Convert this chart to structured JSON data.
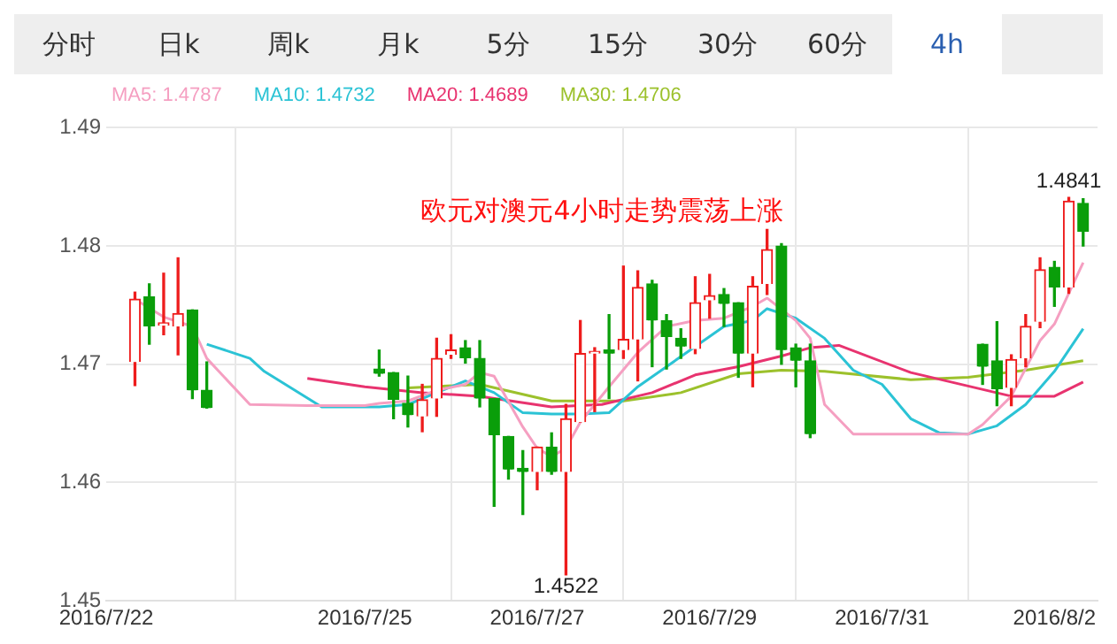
{
  "chart_data": {
    "type": "candlestick",
    "title": "欧元对澳元4小时走势震荡上涨",
    "annotations": [
      "分时",
      "日k",
      "周k",
      "月k",
      "5分",
      "15分",
      "30分",
      "60分",
      "4h",
      {
        "text": "1.4841",
        "y": 1.4841
      },
      {
        "text": "1.4522",
        "y": 1.4522
      }
    ],
    "x": [
      "2016-07-22T08:00",
      "2016-07-22T12:00",
      "2016-07-22T16:00",
      "2016-07-22T20:00",
      "2016-07-23T00:00",
      "2016-07-23T04:00",
      "2016-07-25T04:00",
      "2016-07-25T08:00",
      "2016-07-25T12:00",
      "2016-07-25T16:00",
      "2016-07-25T20:00",
      "2016-07-26T00:00",
      "2016-07-26T04:00",
      "2016-07-26T08:00",
      "2016-07-26T12:00",
      "2016-07-26T16:00",
      "2016-07-26T20:00",
      "2016-07-27T00:00",
      "2016-07-27T04:00",
      "2016-07-27T08:00",
      "2016-07-27T12:00",
      "2016-07-27T16:00",
      "2016-07-27T20:00",
      "2016-07-28T00:00",
      "2016-07-28T04:00",
      "2016-07-28T08:00",
      "2016-07-28T12:00",
      "2016-07-28T16:00",
      "2016-07-28T20:00",
      "2016-07-29T00:00",
      "2016-07-29T04:00",
      "2016-07-29T08:00",
      "2016-07-29T12:00",
      "2016-07-29T16:00",
      "2016-07-29T20:00",
      "2016-07-30T00:00",
      "2016-07-30T04:00",
      "2016-08-01T04:00",
      "2016-08-01T08:00",
      "2016-08-01T12:00",
      "2016-08-01T16:00",
      "2016-08-01T20:00",
      "2016-08-02T00:00",
      "2016-08-02T04:00",
      "2016-08-02T08:00"
    ],
    "ohlc": [
      [
        1.4702,
        1.4761,
        1.4682,
        1.4755
      ],
      [
        1.4757,
        1.4768,
        1.4717,
        1.4732
      ],
      [
        1.4733,
        1.4777,
        1.4725,
        1.4735
      ],
      [
        1.4732,
        1.479,
        1.4708,
        1.4743
      ],
      [
        1.4746,
        1.4746,
        1.4671,
        1.4678
      ],
      [
        1.4678,
        1.4702,
        1.4663,
        1.4663
      ],
      [
        1.4696,
        1.4712,
        1.469,
        1.4692
      ],
      [
        1.4693,
        1.4693,
        1.4654,
        1.467
      ],
      [
        1.4667,
        1.469,
        1.4647,
        1.4657
      ],
      [
        1.4656,
        1.4683,
        1.4643,
        1.467
      ],
      [
        1.4671,
        1.4722,
        1.4656,
        1.4705
      ],
      [
        1.4708,
        1.4725,
        1.4705,
        1.4712
      ],
      [
        1.4714,
        1.472,
        1.4701,
        1.4705
      ],
      [
        1.4705,
        1.472,
        1.4664,
        1.4671
      ],
      [
        1.4671,
        1.4671,
        1.458,
        1.464
      ],
      [
        1.4639,
        1.4639,
        1.4603,
        1.4611
      ],
      [
        1.4612,
        1.4627,
        1.4573,
        1.4609
      ],
      [
        1.4609,
        1.463,
        1.4594,
        1.463
      ],
      [
        1.463,
        1.4642,
        1.4607,
        1.4609
      ],
      [
        1.4609,
        1.4666,
        1.4522,
        1.4654
      ],
      [
        1.4651,
        1.4737,
        1.4651,
        1.4709
      ],
      [
        1.4709,
        1.4714,
        1.466,
        1.4711
      ],
      [
        1.4712,
        1.4742,
        1.4671,
        1.4709
      ],
      [
        1.4712,
        1.4783,
        1.4705,
        1.4721
      ],
      [
        1.4721,
        1.4779,
        1.4686,
        1.4765
      ],
      [
        1.4768,
        1.4771,
        1.4698,
        1.4737
      ],
      [
        1.4737,
        1.4742,
        1.4696,
        1.4723
      ],
      [
        1.4722,
        1.473,
        1.4705,
        1.4715
      ],
      [
        1.4713,
        1.4774,
        1.4709,
        1.4752
      ],
      [
        1.4754,
        1.4776,
        1.4739,
        1.4758
      ],
      [
        1.4759,
        1.4764,
        1.4732,
        1.4751
      ],
      [
        1.4752,
        1.4752,
        1.4689,
        1.4709
      ],
      [
        1.4709,
        1.4774,
        1.4681,
        1.4766
      ],
      [
        1.4768,
        1.4814,
        1.4759,
        1.4797
      ],
      [
        1.48,
        1.4802,
        1.47,
        1.4712
      ],
      [
        1.4714,
        1.4717,
        1.4681,
        1.4703
      ],
      [
        1.4703,
        1.4717,
        1.4638,
        1.4641
      ],
      [
        1.4717,
        1.4717,
        1.4683,
        1.4698
      ],
      [
        1.4703,
        1.4736,
        1.4665,
        1.4679
      ],
      [
        1.468,
        1.4708,
        1.4665,
        1.4704
      ],
      [
        1.4705,
        1.4742,
        1.4698,
        1.4732
      ],
      [
        1.4736,
        1.479,
        1.4731,
        1.478
      ],
      [
        1.4782,
        1.4787,
        1.4749,
        1.4765
      ],
      [
        1.4765,
        1.4841,
        1.476,
        1.4838
      ],
      [
        1.4836,
        1.484,
        1.48,
        1.4812
      ]
    ],
    "series": [
      {
        "name": "MA5: 1.4787",
        "type": "line",
        "color": "#f59fc1",
        "x": [
          "2016-07-22T08:00",
          "2016-07-22T16:00",
          "2016-07-23T00:00",
          "2016-07-23T04:00",
          "2016-07-23T16:00",
          "2016-07-24T08:00",
          "2016-07-25T00:00",
          "2016-07-25T04:00",
          "2016-07-25T12:00",
          "2016-07-25T20:00",
          "2016-07-26T04:00",
          "2016-07-26T08:00",
          "2016-07-26T12:00",
          "2016-07-26T20:00",
          "2016-07-27T00:00",
          "2016-07-27T04:00",
          "2016-07-27T08:00",
          "2016-07-27T12:00",
          "2016-07-27T20:00",
          "2016-07-28T04:00",
          "2016-07-28T12:00",
          "2016-07-28T20:00",
          "2016-07-29T04:00",
          "2016-07-29T12:00",
          "2016-07-29T16:00",
          "2016-07-30T00:00",
          "2016-07-30T04:00",
          "2016-07-30T08:00",
          "2016-07-30T16:00",
          "2016-07-31T16:00",
          "2016-08-01T00:00",
          "2016-08-01T04:00",
          "2016-08-01T12:00",
          "2016-08-01T20:00",
          "2016-08-02T00:00",
          "2016-08-02T08:00"
        ],
        "values": [
          1.4755,
          1.474,
          1.4732,
          1.4705,
          1.4666,
          1.4665,
          1.4665,
          1.4667,
          1.4669,
          1.4678,
          1.4683,
          1.4693,
          1.469,
          1.4647,
          1.4629,
          1.4622,
          1.4629,
          1.4651,
          1.4681,
          1.471,
          1.4732,
          1.4737,
          1.4739,
          1.4749,
          1.4756,
          1.4737,
          1.4722,
          1.4666,
          1.4641,
          1.4641,
          1.4641,
          1.4649,
          1.4673,
          1.472,
          1.4734,
          1.4786
        ]
      },
      {
        "name": "MA10: 1.4732",
        "type": "line",
        "color": "#2bc3d5",
        "x": [
          "2016-07-23T04:00",
          "2016-07-23T16:00",
          "2016-07-23T20:00",
          "2016-07-24T12:00",
          "2016-07-25T00:00",
          "2016-07-25T04:00",
          "2016-07-25T12:00",
          "2016-07-25T20:00",
          "2016-07-26T04:00",
          "2016-07-26T12:00",
          "2016-07-26T20:00",
          "2016-07-27T04:00",
          "2016-07-27T12:00",
          "2016-07-27T20:00",
          "2016-07-28T04:00",
          "2016-07-28T12:00",
          "2016-07-28T20:00",
          "2016-07-29T04:00",
          "2016-07-29T12:00",
          "2016-07-29T16:00",
          "2016-07-30T00:00",
          "2016-07-30T08:00",
          "2016-07-30T16:00",
          "2016-07-31T00:00",
          "2016-07-31T08:00",
          "2016-07-31T16:00",
          "2016-08-01T00:00",
          "2016-08-01T08:00",
          "2016-08-01T16:00",
          "2016-08-02T00:00",
          "2016-08-02T08:00"
        ],
        "values": [
          1.4717,
          1.4705,
          1.4694,
          1.4664,
          1.4664,
          1.4664,
          1.4666,
          1.4676,
          1.4686,
          1.4676,
          1.4659,
          1.4658,
          1.4658,
          1.4659,
          1.4681,
          1.4698,
          1.4715,
          1.4732,
          1.4737,
          1.4747,
          1.4739,
          1.4722,
          1.4695,
          1.4683,
          1.4654,
          1.4642,
          1.4641,
          1.4648,
          1.4666,
          1.4694,
          1.473
        ]
      },
      {
        "name": "MA20: 1.4689",
        "type": "line",
        "color": "#e8336f",
        "x": [
          "2016-07-24T08:00",
          "2016-07-25T00:00",
          "2016-07-25T16:00",
          "2016-07-26T08:00",
          "2016-07-27T04:00",
          "2016-07-27T18:00",
          "2016-07-28T08:00",
          "2016-07-28T20:00",
          "2016-07-29T08:00",
          "2016-07-29T20:00",
          "2016-07-30T04:00",
          "2016-07-30T12:00",
          "2016-07-31T08:00",
          "2016-08-01T12:00",
          "2016-08-02T00:00",
          "2016-08-02T08:00"
        ],
        "values": [
          1.4688,
          1.4681,
          1.4676,
          1.4673,
          1.4664,
          1.4666,
          1.4676,
          1.4691,
          1.4698,
          1.4707,
          1.4714,
          1.4716,
          1.4693,
          1.4673,
          1.4673,
          1.4685
        ]
      },
      {
        "name": "MA30: 1.4706",
        "type": "line",
        "color": "#9cc12c",
        "x": [
          "2016-07-25T12:00",
          "2016-07-26T08:00",
          "2016-07-27T04:00",
          "2016-07-28T00:00",
          "2016-07-28T16:00",
          "2016-07-29T08:00",
          "2016-07-29T20:00",
          "2016-07-30T08:00",
          "2016-07-31T08:00",
          "2016-08-01T00:00",
          "2016-08-01T16:00",
          "2016-08-02T08:00"
        ],
        "values": [
          1.468,
          1.4683,
          1.4669,
          1.4669,
          1.4676,
          1.4692,
          1.4695,
          1.4694,
          1.4687,
          1.4689,
          1.4695,
          1.4703
        ]
      }
    ],
    "xlim": [
      "2016-07-22T00:00",
      "2016-08-02T12:00"
    ],
    "xticks": [
      {
        "value": "2016-07-22",
        "label": "2016/7/22"
      },
      {
        "value": "2016-07-25",
        "label": "2016/7/25"
      },
      {
        "value": "2016-07-27",
        "label": "2016/7/27"
      },
      {
        "value": "2016-07-29",
        "label": "2016/7/29"
      },
      {
        "value": "2016-07-31",
        "label": "2016/7/31"
      },
      {
        "value": "2016-08-02",
        "label": "2016/8/2"
      }
    ],
    "ylim": [
      1.45,
      1.49
    ],
    "yticks": [
      1.45,
      1.46,
      1.47,
      1.48,
      1.49
    ],
    "grid": true,
    "legend": "top left",
    "marker": "none",
    "line_style": "solid"
  }
}
